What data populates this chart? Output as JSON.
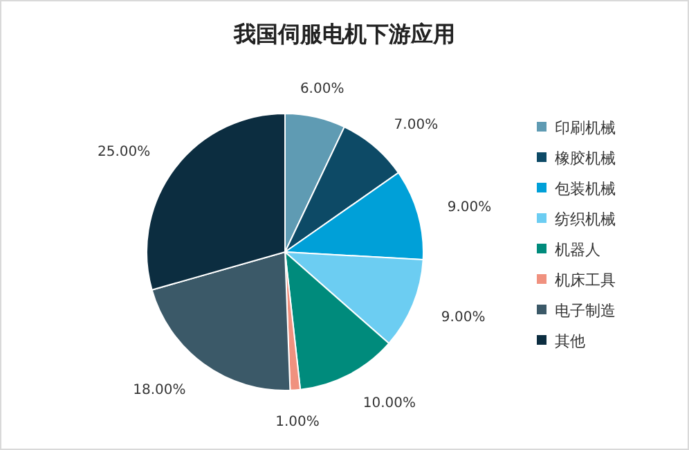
{
  "chart_data": {
    "type": "pie",
    "title": "我国伺服电机下游应用",
    "categories": [
      "印刷机械",
      "橡胶机械",
      "包装机械",
      "纺织机械",
      "机器人",
      "机床工具",
      "电子制造",
      "其他"
    ],
    "values": [
      6,
      7,
      9,
      9,
      10,
      1,
      18,
      25
    ],
    "value_labels": [
      "6.00%",
      "7.00%",
      "9.00%",
      "9.00%",
      "10.00%",
      "1.00%",
      "18.00%",
      "25.00%"
    ],
    "colors": [
      "#5f9bb3",
      "#0d4a66",
      "#00a0d8",
      "#6ccdf2",
      "#008b7c",
      "#f0917f",
      "#3b5968",
      "#0c2d40"
    ],
    "legend": "right"
  }
}
